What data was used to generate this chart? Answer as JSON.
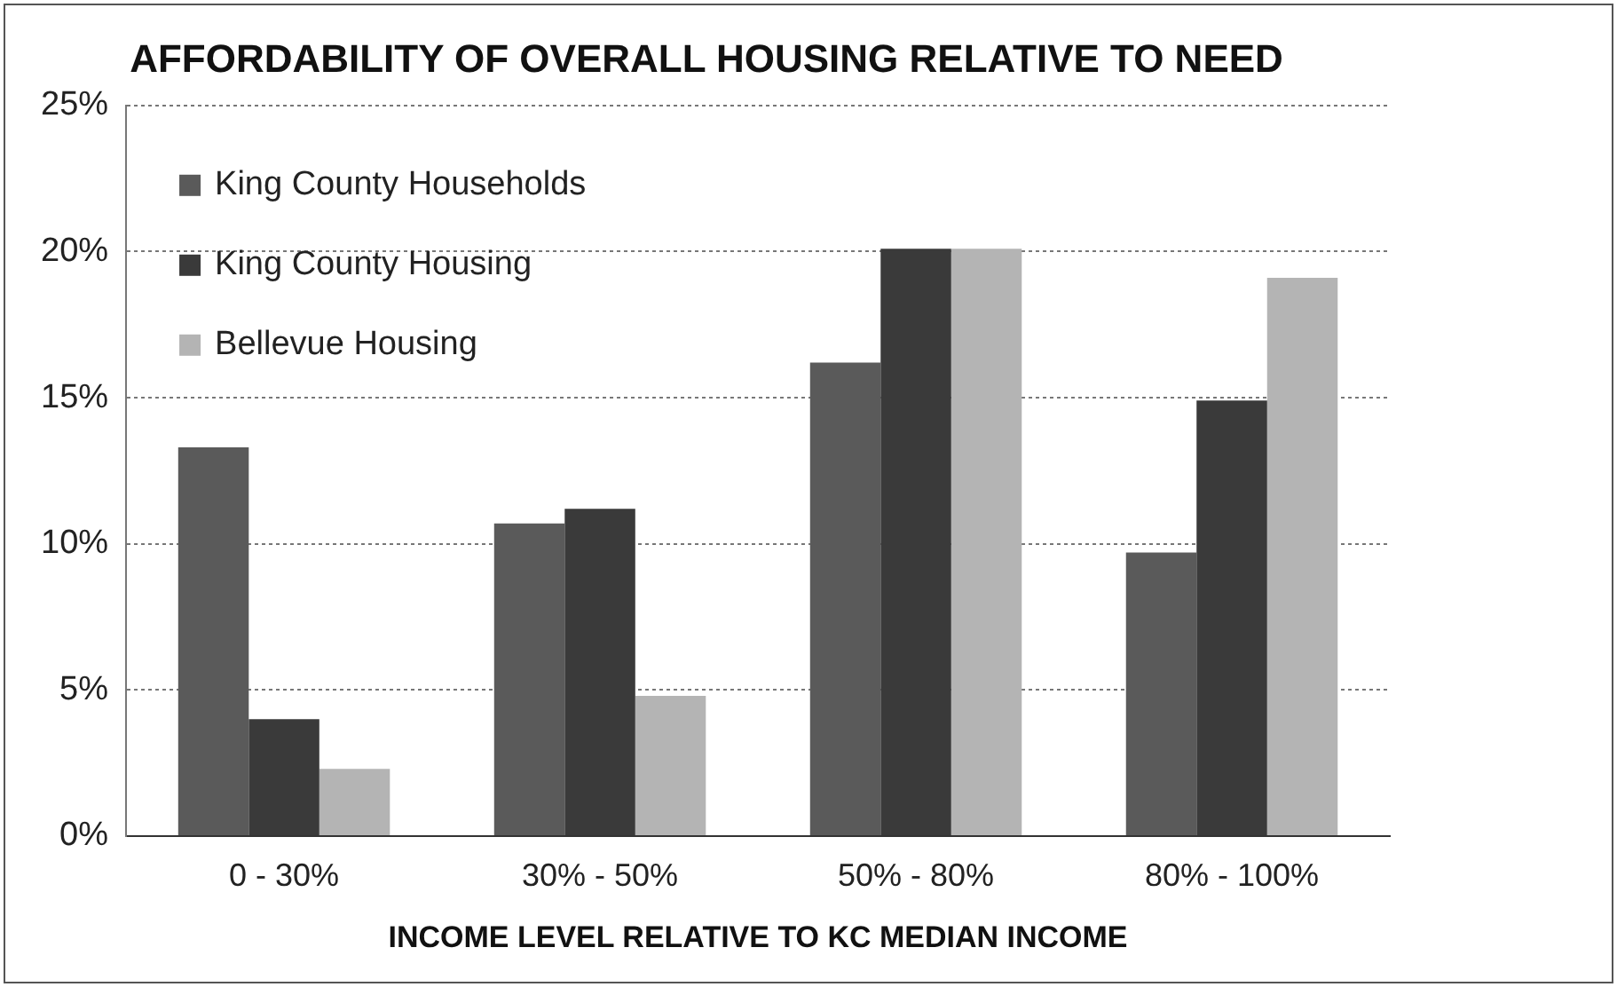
{
  "chart_data": {
    "type": "bar",
    "title": "AFFORDABILITY OF OVERALL HOUSING RELATIVE TO NEED",
    "xlabel": "INCOME LEVEL RELATIVE TO KC MEDIAN INCOME",
    "categories": [
      "0 - 30%",
      "30% - 50%",
      "50% - 80%",
      "80% - 100%"
    ],
    "series": [
      {
        "name": "King County Households",
        "color": "#5a5a5a",
        "values": [
          13.3,
          10.7,
          16.2,
          9.7
        ]
      },
      {
        "name": "King County Housing",
        "color": "#3a3a3a",
        "values": [
          4.0,
          11.2,
          20.1,
          14.9
        ]
      },
      {
        "name": "Bellevue Housing",
        "color": "#b4b4b4",
        "values": [
          2.3,
          4.8,
          20.1,
          19.1
        ]
      }
    ],
    "ylim": [
      0,
      25
    ],
    "yticks": [
      {
        "value": 0,
        "label": "0%"
      },
      {
        "value": 5,
        "label": "5%"
      },
      {
        "value": 10,
        "label": "10%"
      },
      {
        "value": 15,
        "label": "15%"
      },
      {
        "value": 20,
        "label": "20%"
      },
      {
        "value": 25,
        "label": "25%"
      }
    ],
    "grid": "y",
    "legend": "top left"
  }
}
